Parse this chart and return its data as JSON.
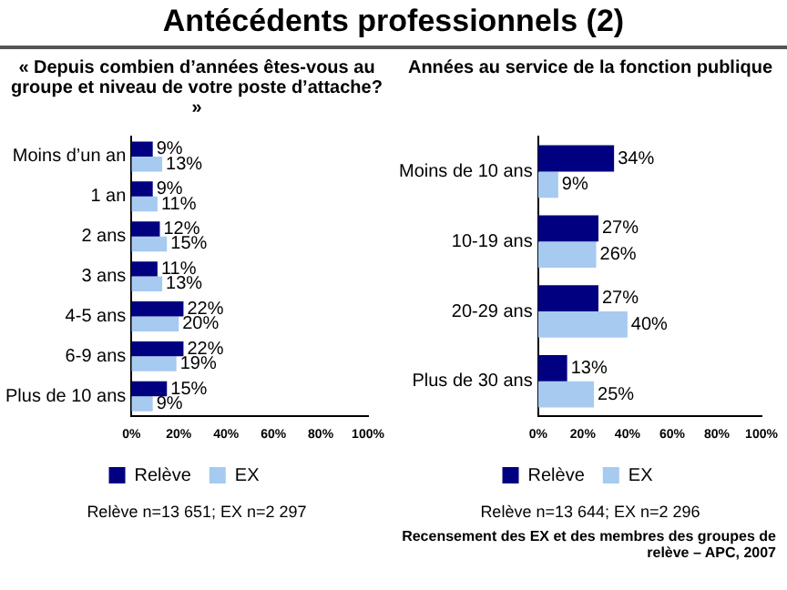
{
  "chart_data": [
    {
      "type": "bar",
      "orientation": "horizontal",
      "title": "Antécédents professionnels (2)",
      "subtitle": "« Depuis combien d’années êtes-vous au groupe et niveau de votre poste d’attache? »",
      "categories": [
        "Moins d’un an",
        "1 an",
        "2 ans",
        "3 ans",
        "4-5 ans",
        "6-9 ans",
        "Plus de 10 ans"
      ],
      "series": [
        {
          "name": "Relève",
          "color": "#000080",
          "values": [
            9,
            9,
            12,
            11,
            22,
            22,
            15
          ],
          "value_labels": [
            "9%",
            "9%",
            "12%",
            "11%",
            "22%",
            "22%",
            "15%"
          ]
        },
        {
          "name": "EX",
          "color": "#a6caf0",
          "values": [
            13,
            11,
            15,
            13,
            20,
            19,
            9
          ],
          "value_labels": [
            "13%",
            "11%",
            "15%",
            "13%",
            "20%",
            "19%",
            "9%"
          ]
        }
      ],
      "xlim": [
        0,
        100
      ],
      "xticks": [
        {
          "value": 0,
          "label": "0%"
        },
        {
          "value": 20,
          "label": "20%"
        },
        {
          "value": 40,
          "label": "40%"
        },
        {
          "value": 60,
          "label": "60%"
        },
        {
          "value": 80,
          "label": "80%"
        },
        {
          "value": 100,
          "label": "100%"
        }
      ],
      "grid": false,
      "legend": "bottom",
      "annotations": [
        "Relève n=13 651; EX n=2 297"
      ]
    },
    {
      "type": "bar",
      "orientation": "horizontal",
      "title": "Années au service de la fonction publique",
      "categories": [
        "Moins de 10 ans",
        "10-19 ans",
        "20-29 ans",
        "Plus de 30 ans"
      ],
      "series": [
        {
          "name": "Relève",
          "color": "#000080",
          "values": [
            34,
            27,
            27,
            13
          ],
          "value_labels": [
            "34%",
            "27%",
            "27%",
            "13%"
          ]
        },
        {
          "name": "EX",
          "color": "#a6caf0",
          "values": [
            9,
            26,
            40,
            25
          ],
          "value_labels": [
            "9%",
            "26%",
            "40%",
            "25%"
          ]
        }
      ],
      "xlim": [
        0,
        100
      ],
      "xticks": [
        {
          "value": 0,
          "label": "0%"
        },
        {
          "value": 20,
          "label": "20%"
        },
        {
          "value": 40,
          "label": "40%"
        },
        {
          "value": 60,
          "label": "60%"
        },
        {
          "value": 80,
          "label": "80%"
        },
        {
          "value": 100,
          "label": "100%"
        }
      ],
      "grid": false,
      "legend": "bottom",
      "annotations": [
        "Relève n=13 644; EX n=2 296",
        "Recensement des EX et des membres des groupes de relève – APC, 2007"
      ]
    }
  ]
}
